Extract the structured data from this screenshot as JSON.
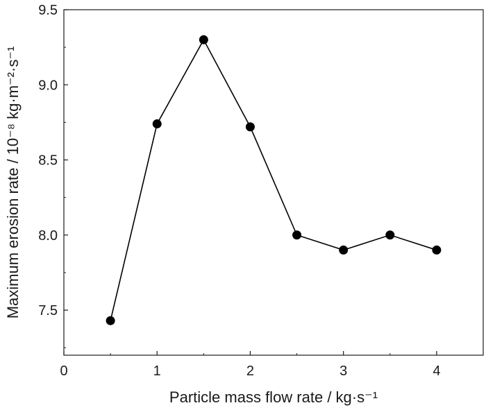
{
  "chart_data": {
    "type": "line",
    "title": "",
    "xlabel": "Particle mass flow rate / kg·s⁻¹",
    "ylabel": "Maximum erosion rate / 10⁻⁸ kg·m⁻²·s⁻¹",
    "xlim": [
      0,
      4.5
    ],
    "ylim": [
      7.2,
      9.5
    ],
    "xticks": [
      0,
      1,
      2,
      3,
      4
    ],
    "yticks": [
      7.5,
      8.0,
      8.5,
      9.0,
      9.5
    ],
    "xtick_labels": [
      "0",
      "1",
      "2",
      "3",
      "4"
    ],
    "ytick_labels": [
      "7.5",
      "8.0",
      "8.5",
      "9.0",
      "9.5"
    ],
    "grid": false,
    "legend": "none",
    "series": [
      {
        "x": [
          0.5,
          1.0,
          1.5,
          2.0,
          2.5,
          3.0,
          3.5,
          4.0
        ],
        "y": [
          7.43,
          8.74,
          9.3,
          8.72,
          8.0,
          7.9,
          8.0,
          7.9
        ],
        "marker": "filled-circle",
        "color": "#000000"
      }
    ]
  }
}
